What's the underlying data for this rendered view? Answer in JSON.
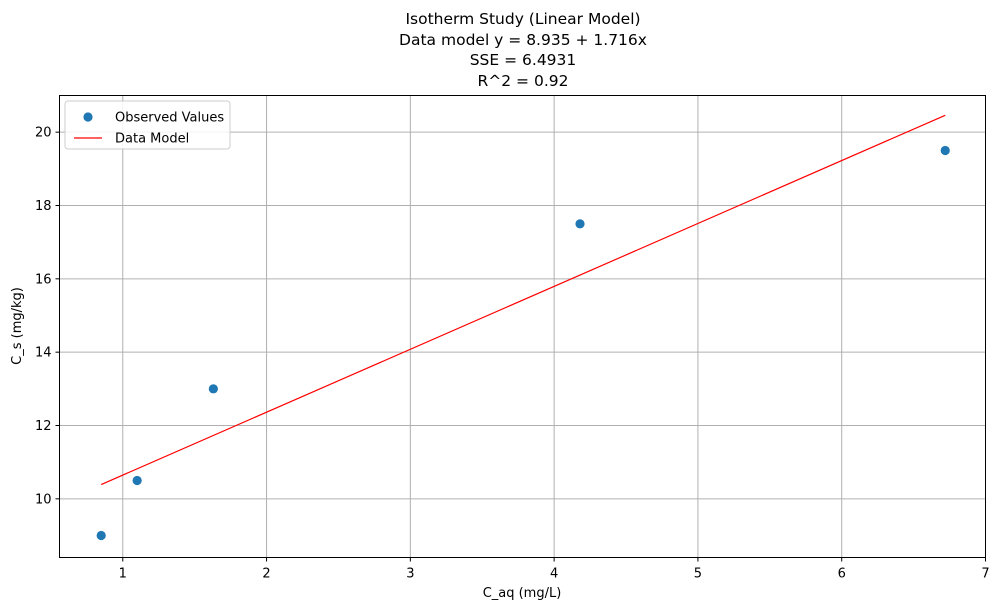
{
  "chart_data": {
    "type": "scatter",
    "title_lines": [
      "Isotherm Study (Linear Model)",
      "Data model y = 8.935 + 1.716x",
      "SSE = 6.4931",
      "R^2 = 0.92"
    ],
    "xlabel": "C_aq (mg/L)",
    "ylabel": "C_s  (mg/kg)",
    "xlim": [
      0.56,
      7.0
    ],
    "ylim": [
      8.4,
      21.0
    ],
    "x_ticks": [
      1,
      2,
      3,
      4,
      5,
      6,
      7
    ],
    "y_ticks": [
      10,
      12,
      14,
      16,
      18,
      20
    ],
    "grid": true,
    "legend_position": "upper-left",
    "series": [
      {
        "name": "Observed Values",
        "kind": "scatter",
        "color": "#1f77b4",
        "x": [
          0.85,
          1.1,
          1.63,
          4.18,
          6.72
        ],
        "y": [
          9.0,
          10.5,
          13.0,
          17.5,
          19.5
        ]
      },
      {
        "name": "Data Model",
        "kind": "line",
        "color": "#ff0000",
        "x": [
          0.85,
          6.72
        ],
        "y": [
          10.39,
          20.46
        ]
      }
    ]
  }
}
